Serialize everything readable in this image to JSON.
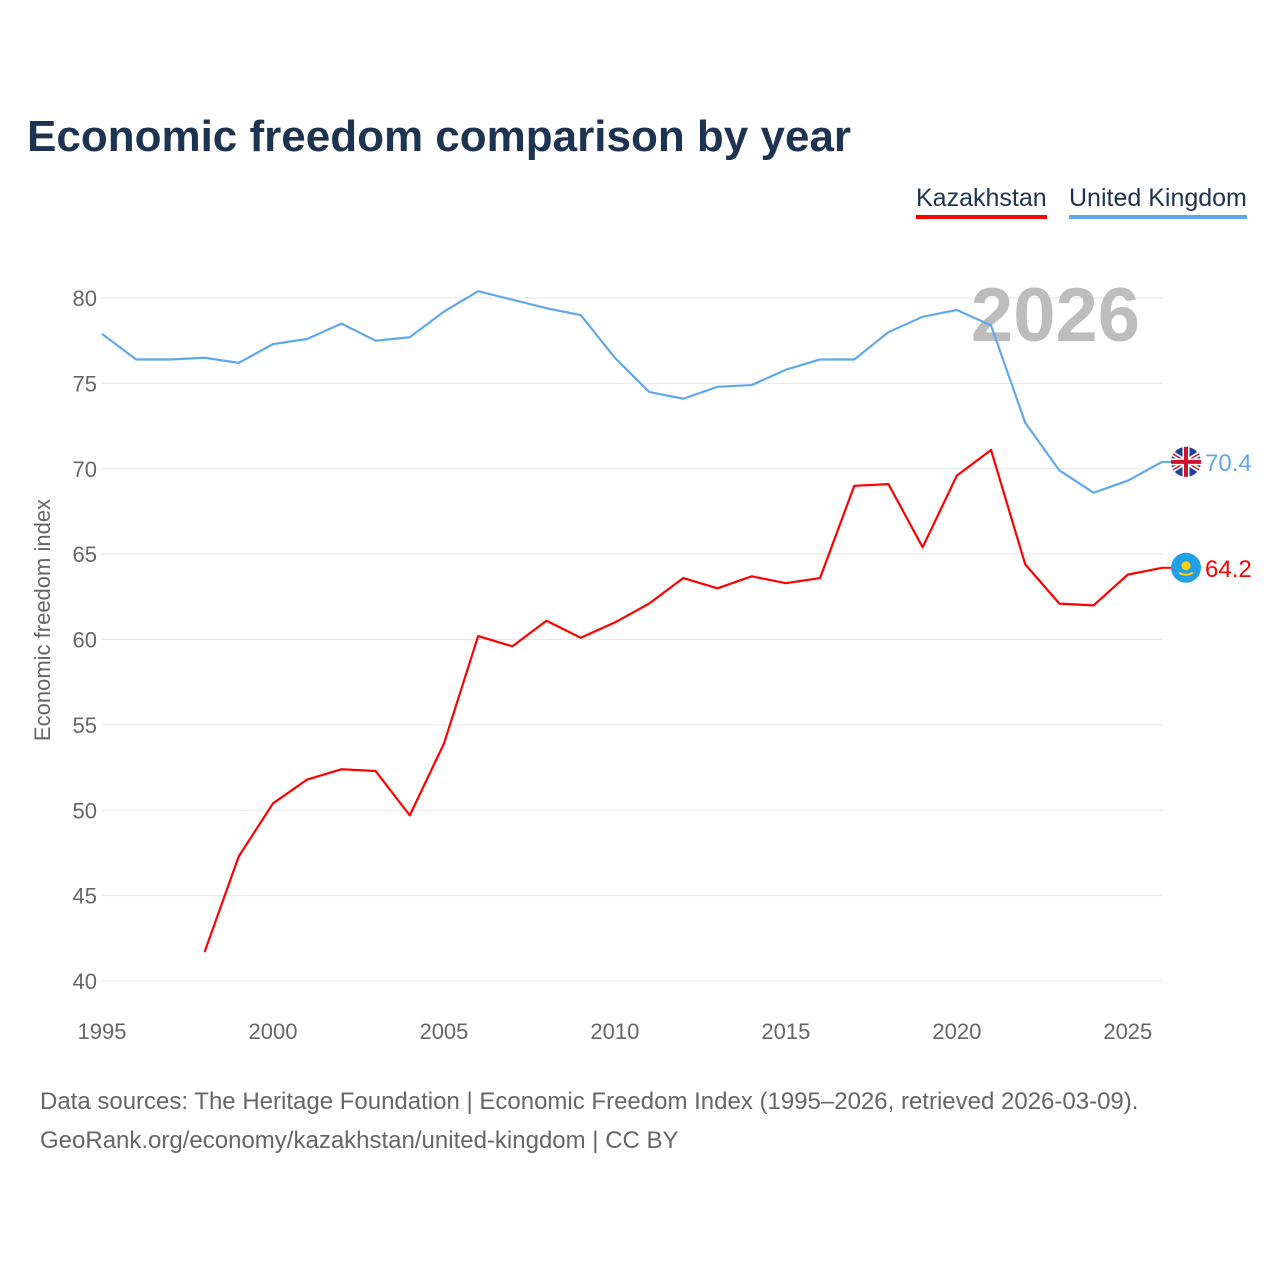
{
  "chart_data": {
    "type": "line",
    "title": "Economic freedom comparison by year",
    "ylabel": "Economic freedom index",
    "xlabel": "",
    "xlim": [
      1995,
      2026
    ],
    "ylim": [
      40,
      82
    ],
    "yticks": [
      40,
      45,
      50,
      55,
      60,
      65,
      70,
      75,
      80
    ],
    "xticks": [
      1995,
      2000,
      2005,
      2010,
      2015,
      2020,
      2025
    ],
    "year_label": "2026",
    "legend_position": "top-right",
    "series": [
      {
        "name": "Kazakhstan",
        "color": "#ff0000",
        "end_label": "64.2",
        "flag": "kazakhstan-flag",
        "x": [
          1998,
          1999,
          2000,
          2001,
          2002,
          2003,
          2004,
          2005,
          2006,
          2007,
          2008,
          2009,
          2010,
          2011,
          2012,
          2013,
          2014,
          2015,
          2016,
          2017,
          2018,
          2019,
          2020,
          2021,
          2022,
          2023,
          2024,
          2025,
          2026
        ],
        "values": [
          41.7,
          47.3,
          50.4,
          51.8,
          52.4,
          52.3,
          49.7,
          53.9,
          60.2,
          59.6,
          61.1,
          60.1,
          61.0,
          62.1,
          63.6,
          63.0,
          63.7,
          63.3,
          63.6,
          69.0,
          69.1,
          65.4,
          69.6,
          71.1,
          64.4,
          62.1,
          62.0,
          63.8,
          64.2
        ]
      },
      {
        "name": "United Kingdom",
        "color": "#5ea8ec",
        "end_label": "70.4",
        "flag": "uk-flag",
        "x": [
          1995,
          1996,
          1997,
          1998,
          1999,
          2000,
          2001,
          2002,
          2003,
          2004,
          2005,
          2006,
          2007,
          2008,
          2009,
          2010,
          2011,
          2012,
          2013,
          2014,
          2015,
          2016,
          2017,
          2018,
          2019,
          2020,
          2021,
          2022,
          2023,
          2024,
          2025,
          2026
        ],
        "values": [
          77.9,
          76.4,
          76.4,
          76.5,
          76.2,
          77.3,
          77.6,
          78.5,
          77.5,
          77.7,
          79.2,
          80.4,
          79.9,
          79.4,
          79.0,
          76.5,
          74.5,
          74.1,
          74.8,
          74.9,
          75.8,
          76.4,
          76.4,
          78.0,
          78.9,
          79.3,
          78.4,
          72.7,
          69.9,
          68.6,
          69.3,
          70.4
        ]
      }
    ]
  },
  "footer": {
    "line1": "Data sources: The Heritage Foundation | Economic Freedom Index (1995–2026, retrieved 2026-03-09).",
    "line2": "GeoRank.org/economy/kazakhstan/united-kingdom | CC BY"
  }
}
